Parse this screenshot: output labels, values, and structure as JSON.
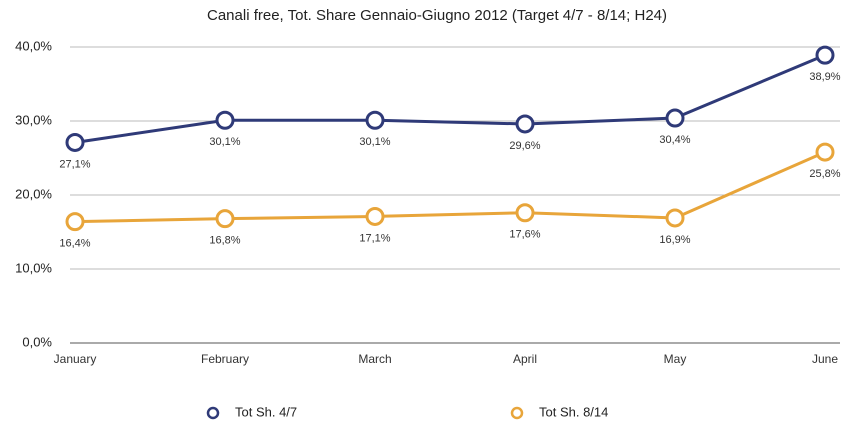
{
  "chart_data": {
    "type": "line",
    "title": "Canali free, Tot. Share Gennaio-Giugno 2012 (Target 4/7 - 8/14; H24)",
    "categories": [
      "January",
      "February",
      "March",
      "April",
      "May",
      "June"
    ],
    "series": [
      {
        "name": "Tot Sh. 4/7",
        "color": "#2f3a78",
        "values": [
          27.1,
          30.1,
          30.1,
          29.6,
          30.4,
          38.9
        ],
        "value_labels": [
          "27,1%",
          "30,1%",
          "30,1%",
          "29,6%",
          "30,4%",
          "38,9%"
        ]
      },
      {
        "name": "Tot Sh. 8/14",
        "color": "#e8a53a",
        "values": [
          16.4,
          16.8,
          17.1,
          17.6,
          16.9,
          25.8
        ],
        "value_labels": [
          "16,4%",
          "16,8%",
          "17,1%",
          "17,6%",
          "16,9%",
          "25,8%"
        ]
      }
    ],
    "ylim": [
      0,
      40
    ],
    "yticks": [
      {
        "value": 0,
        "label": "0,0%"
      },
      {
        "value": 10,
        "label": "10,0%"
      },
      {
        "value": 20,
        "label": "20,0%"
      },
      {
        "value": 30,
        "label": "30,0%"
      },
      {
        "value": 40,
        "label": "40,0%"
      }
    ],
    "grid": true
  }
}
